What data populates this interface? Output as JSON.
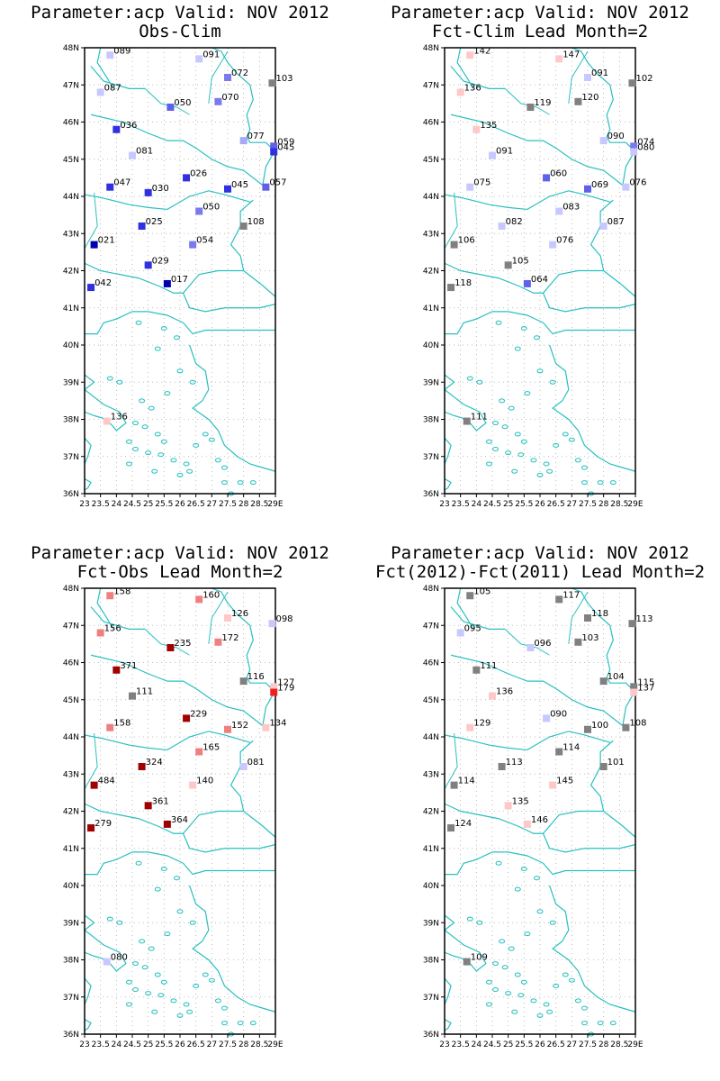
{
  "colors": {
    "coast": "#29c0c0",
    "grid": "#aaaaaa",
    "frame": "#000000"
  },
  "axes": {
    "lat_labels": [
      "48N",
      "47N",
      "46N",
      "45N",
      "44N",
      "43N",
      "42N",
      "41N",
      "40N",
      "39N",
      "38N",
      "37N",
      "36N"
    ],
    "lon_labels": [
      "23",
      "23.5",
      "24",
      "24.5",
      "25",
      "25.5",
      "26",
      "26.5",
      "27",
      "27.5",
      "28",
      "28.5",
      "29E"
    ]
  },
  "panels": [
    {
      "title1": "Parameter:acp Valid: NOV 2012",
      "title2": "Obs-Clim",
      "stations": [
        {
          "lon": 23.8,
          "lat": 47.8,
          "label": "089",
          "color": "#c8c8ff"
        },
        {
          "lon": 26.6,
          "lat": 47.7,
          "label": "091",
          "color": "#c8c8ff"
        },
        {
          "lon": 27.5,
          "lat": 47.2,
          "label": "072",
          "color": "#7a7aee"
        },
        {
          "lon": 28.9,
          "lat": 47.05,
          "label": "103",
          "color": "#808080"
        },
        {
          "lon": 23.5,
          "lat": 46.8,
          "label": "087",
          "color": "#c8c8ff"
        },
        {
          "lon": 27.2,
          "lat": 46.55,
          "label": "070",
          "color": "#7a7aee"
        },
        {
          "lon": 25.7,
          "lat": 46.4,
          "label": "050",
          "color": "#6060e8"
        },
        {
          "lon": 24.0,
          "lat": 45.8,
          "label": "036",
          "color": "#3030e0"
        },
        {
          "lon": 28.0,
          "lat": 45.5,
          "label": "077",
          "color": "#a8a8f8"
        },
        {
          "lon": 28.95,
          "lat": 45.35,
          "label": "059",
          "color": "#6060e8"
        },
        {
          "lon": 28.95,
          "lat": 45.2,
          "label": "045",
          "color": "#3030e0"
        },
        {
          "lon": 24.5,
          "lat": 45.1,
          "label": "081",
          "color": "#c8c8ff"
        },
        {
          "lon": 26.2,
          "lat": 44.5,
          "label": "026",
          "color": "#3030e0"
        },
        {
          "lon": 23.8,
          "lat": 44.25,
          "label": "047",
          "color": "#3030e0"
        },
        {
          "lon": 27.5,
          "lat": 44.2,
          "label": "045",
          "color": "#3030e0"
        },
        {
          "lon": 28.7,
          "lat": 44.25,
          "label": "057",
          "color": "#6060e8"
        },
        {
          "lon": 25.0,
          "lat": 44.1,
          "label": "030",
          "color": "#3030e0"
        },
        {
          "lon": 26.6,
          "lat": 43.6,
          "label": "050",
          "color": "#7a7aee"
        },
        {
          "lon": 28.0,
          "lat": 43.2,
          "label": "108",
          "color": "#808080"
        },
        {
          "lon": 24.8,
          "lat": 43.2,
          "label": "025",
          "color": "#3030e0"
        },
        {
          "lon": 23.3,
          "lat": 42.7,
          "label": "021",
          "color": "#0000b0"
        },
        {
          "lon": 26.4,
          "lat": 42.7,
          "label": "054",
          "color": "#7a7aee"
        },
        {
          "lon": 25.0,
          "lat": 42.15,
          "label": "029",
          "color": "#3030e0"
        },
        {
          "lon": 25.6,
          "lat": 41.65,
          "label": "017",
          "color": "#0000b0"
        },
        {
          "lon": 23.2,
          "lat": 41.55,
          "label": "042",
          "color": "#3030e0"
        },
        {
          "lon": 23.7,
          "lat": 37.95,
          "label": "136",
          "color": "#ffc8c8"
        }
      ]
    },
    {
      "title1": "Parameter:acp Valid: NOV 2012",
      "title2": "Fct-Clim Lead Month=2",
      "stations": [
        {
          "lon": 23.8,
          "lat": 47.8,
          "label": "142",
          "color": "#ffc8c8"
        },
        {
          "lon": 26.6,
          "lat": 47.7,
          "label": "147",
          "color": "#ffc8c8"
        },
        {
          "lon": 27.5,
          "lat": 47.2,
          "label": "091",
          "color": "#c8c8ff"
        },
        {
          "lon": 28.9,
          "lat": 47.05,
          "label": "102",
          "color": "#808080"
        },
        {
          "lon": 23.5,
          "lat": 46.8,
          "label": "136",
          "color": "#ffc8c8"
        },
        {
          "lon": 27.2,
          "lat": 46.55,
          "label": "120",
          "color": "#808080"
        },
        {
          "lon": 25.7,
          "lat": 46.4,
          "label": "119",
          "color": "#808080"
        },
        {
          "lon": 24.0,
          "lat": 45.8,
          "label": "135",
          "color": "#ffc8c8"
        },
        {
          "lon": 28.0,
          "lat": 45.5,
          "label": "090",
          "color": "#c8c8ff"
        },
        {
          "lon": 28.95,
          "lat": 45.35,
          "label": "074",
          "color": "#7a7aee"
        },
        {
          "lon": 28.95,
          "lat": 45.2,
          "label": "080",
          "color": "#c8c8ff"
        },
        {
          "lon": 24.5,
          "lat": 45.1,
          "label": "091",
          "color": "#c8c8ff"
        },
        {
          "lon": 26.2,
          "lat": 44.5,
          "label": "060",
          "color": "#6060e8"
        },
        {
          "lon": 23.8,
          "lat": 44.25,
          "label": "075",
          "color": "#c8c8ff"
        },
        {
          "lon": 27.5,
          "lat": 44.2,
          "label": "069",
          "color": "#6060e8"
        },
        {
          "lon": 28.7,
          "lat": 44.25,
          "label": "076",
          "color": "#c8c8ff"
        },
        {
          "lon": 26.6,
          "lat": 43.6,
          "label": "083",
          "color": "#c8c8ff"
        },
        {
          "lon": 28.0,
          "lat": 43.2,
          "label": "087",
          "color": "#c8c8ff"
        },
        {
          "lon": 24.8,
          "lat": 43.2,
          "label": "082",
          "color": "#c8c8ff"
        },
        {
          "lon": 23.3,
          "lat": 42.7,
          "label": "106",
          "color": "#808080"
        },
        {
          "lon": 26.4,
          "lat": 42.7,
          "label": "076",
          "color": "#c8c8ff"
        },
        {
          "lon": 25.0,
          "lat": 42.15,
          "label": "105",
          "color": "#808080"
        },
        {
          "lon": 25.6,
          "lat": 41.65,
          "label": "064",
          "color": "#6060e8"
        },
        {
          "lon": 23.2,
          "lat": 41.55,
          "label": "118",
          "color": "#808080"
        },
        {
          "lon": 23.7,
          "lat": 37.95,
          "label": "111",
          "color": "#808080"
        }
      ]
    },
    {
      "title1": "Parameter:acp Valid: NOV 2012",
      "title2": "Fct-Obs Lead Month=2",
      "stations": [
        {
          "lon": 23.8,
          "lat": 47.8,
          "label": "158",
          "color": "#f08080"
        },
        {
          "lon": 26.6,
          "lat": 47.7,
          "label": "160",
          "color": "#f08080"
        },
        {
          "lon": 27.5,
          "lat": 47.2,
          "label": "126",
          "color": "#ffc8c8"
        },
        {
          "lon": 28.9,
          "lat": 47.05,
          "label": "098",
          "color": "#c8c8ff"
        },
        {
          "lon": 23.5,
          "lat": 46.8,
          "label": "156",
          "color": "#f08080"
        },
        {
          "lon": 27.2,
          "lat": 46.55,
          "label": "172",
          "color": "#f08080"
        },
        {
          "lon": 25.7,
          "lat": 46.4,
          "label": "235",
          "color": "#a00000"
        },
        {
          "lon": 24.0,
          "lat": 45.8,
          "label": "371",
          "color": "#a00000"
        },
        {
          "lon": 28.0,
          "lat": 45.5,
          "label": "116",
          "color": "#808080"
        },
        {
          "lon": 28.95,
          "lat": 45.35,
          "label": "127",
          "color": "#ffc8c8"
        },
        {
          "lon": 28.95,
          "lat": 45.2,
          "label": "179",
          "color": "#f02020"
        },
        {
          "lon": 24.5,
          "lat": 45.1,
          "label": "111",
          "color": "#808080"
        },
        {
          "lon": 26.2,
          "lat": 44.5,
          "label": "229",
          "color": "#a00000"
        },
        {
          "lon": 23.8,
          "lat": 44.25,
          "label": "158",
          "color": "#f08080"
        },
        {
          "lon": 27.5,
          "lat": 44.2,
          "label": "152",
          "color": "#f08080"
        },
        {
          "lon": 28.7,
          "lat": 44.25,
          "label": "134",
          "color": "#ffc8c8"
        },
        {
          "lon": 26.6,
          "lat": 43.6,
          "label": "165",
          "color": "#f08080"
        },
        {
          "lon": 28.0,
          "lat": 43.2,
          "label": "081",
          "color": "#c8c8ff"
        },
        {
          "lon": 24.8,
          "lat": 43.2,
          "label": "324",
          "color": "#a00000"
        },
        {
          "lon": 23.3,
          "lat": 42.7,
          "label": "484",
          "color": "#a00000"
        },
        {
          "lon": 26.4,
          "lat": 42.7,
          "label": "140",
          "color": "#ffc8c8"
        },
        {
          "lon": 25.0,
          "lat": 42.15,
          "label": "361",
          "color": "#a00000"
        },
        {
          "lon": 25.6,
          "lat": 41.65,
          "label": "364",
          "color": "#a00000"
        },
        {
          "lon": 23.2,
          "lat": 41.55,
          "label": "279",
          "color": "#a00000"
        },
        {
          "lon": 23.7,
          "lat": 37.95,
          "label": "080",
          "color": "#c8c8ff"
        }
      ]
    },
    {
      "title1": "Parameter:acp Valid: NOV 2012",
      "title2": "Fct(2012)-Fct(2011) Lead Month=2",
      "stations": [
        {
          "lon": 23.8,
          "lat": 47.8,
          "label": "105",
          "color": "#808080"
        },
        {
          "lon": 26.6,
          "lat": 47.7,
          "label": "117",
          "color": "#808080"
        },
        {
          "lon": 27.5,
          "lat": 47.2,
          "label": "118",
          "color": "#808080"
        },
        {
          "lon": 28.9,
          "lat": 47.05,
          "label": "113",
          "color": "#808080"
        },
        {
          "lon": 23.5,
          "lat": 46.8,
          "label": "095",
          "color": "#c8c8ff"
        },
        {
          "lon": 27.2,
          "lat": 46.55,
          "label": "103",
          "color": "#808080"
        },
        {
          "lon": 25.7,
          "lat": 46.4,
          "label": "096",
          "color": "#c8c8ff"
        },
        {
          "lon": 24.0,
          "lat": 45.8,
          "label": "111",
          "color": "#808080"
        },
        {
          "lon": 28.0,
          "lat": 45.5,
          "label": "104",
          "color": "#808080"
        },
        {
          "lon": 28.95,
          "lat": 45.35,
          "label": "115",
          "color": "#808080"
        },
        {
          "lon": 28.95,
          "lat": 45.2,
          "label": "137",
          "color": "#ffc8c8"
        },
        {
          "lon": 24.5,
          "lat": 45.1,
          "label": "136",
          "color": "#ffc8c8"
        },
        {
          "lon": 26.2,
          "lat": 44.5,
          "label": "090",
          "color": "#c8c8ff"
        },
        {
          "lon": 23.8,
          "lat": 44.25,
          "label": "129",
          "color": "#ffc8c8"
        },
        {
          "lon": 27.5,
          "lat": 44.2,
          "label": "100",
          "color": "#808080"
        },
        {
          "lon": 28.7,
          "lat": 44.25,
          "label": "108",
          "color": "#808080"
        },
        {
          "lon": 26.6,
          "lat": 43.6,
          "label": "114",
          "color": "#808080"
        },
        {
          "lon": 28.0,
          "lat": 43.2,
          "label": "101",
          "color": "#808080"
        },
        {
          "lon": 24.8,
          "lat": 43.2,
          "label": "113",
          "color": "#808080"
        },
        {
          "lon": 23.3,
          "lat": 42.7,
          "label": "114",
          "color": "#808080"
        },
        {
          "lon": 26.4,
          "lat": 42.7,
          "label": "145",
          "color": "#ffc8c8"
        },
        {
          "lon": 25.0,
          "lat": 42.15,
          "label": "135",
          "color": "#ffc8c8"
        },
        {
          "lon": 25.6,
          "lat": 41.65,
          "label": "146",
          "color": "#ffc8c8"
        },
        {
          "lon": 23.2,
          "lat": 41.55,
          "label": "124",
          "color": "#808080"
        },
        {
          "lon": 23.7,
          "lat": 37.95,
          "label": "109",
          "color": "#808080"
        }
      ]
    }
  ]
}
